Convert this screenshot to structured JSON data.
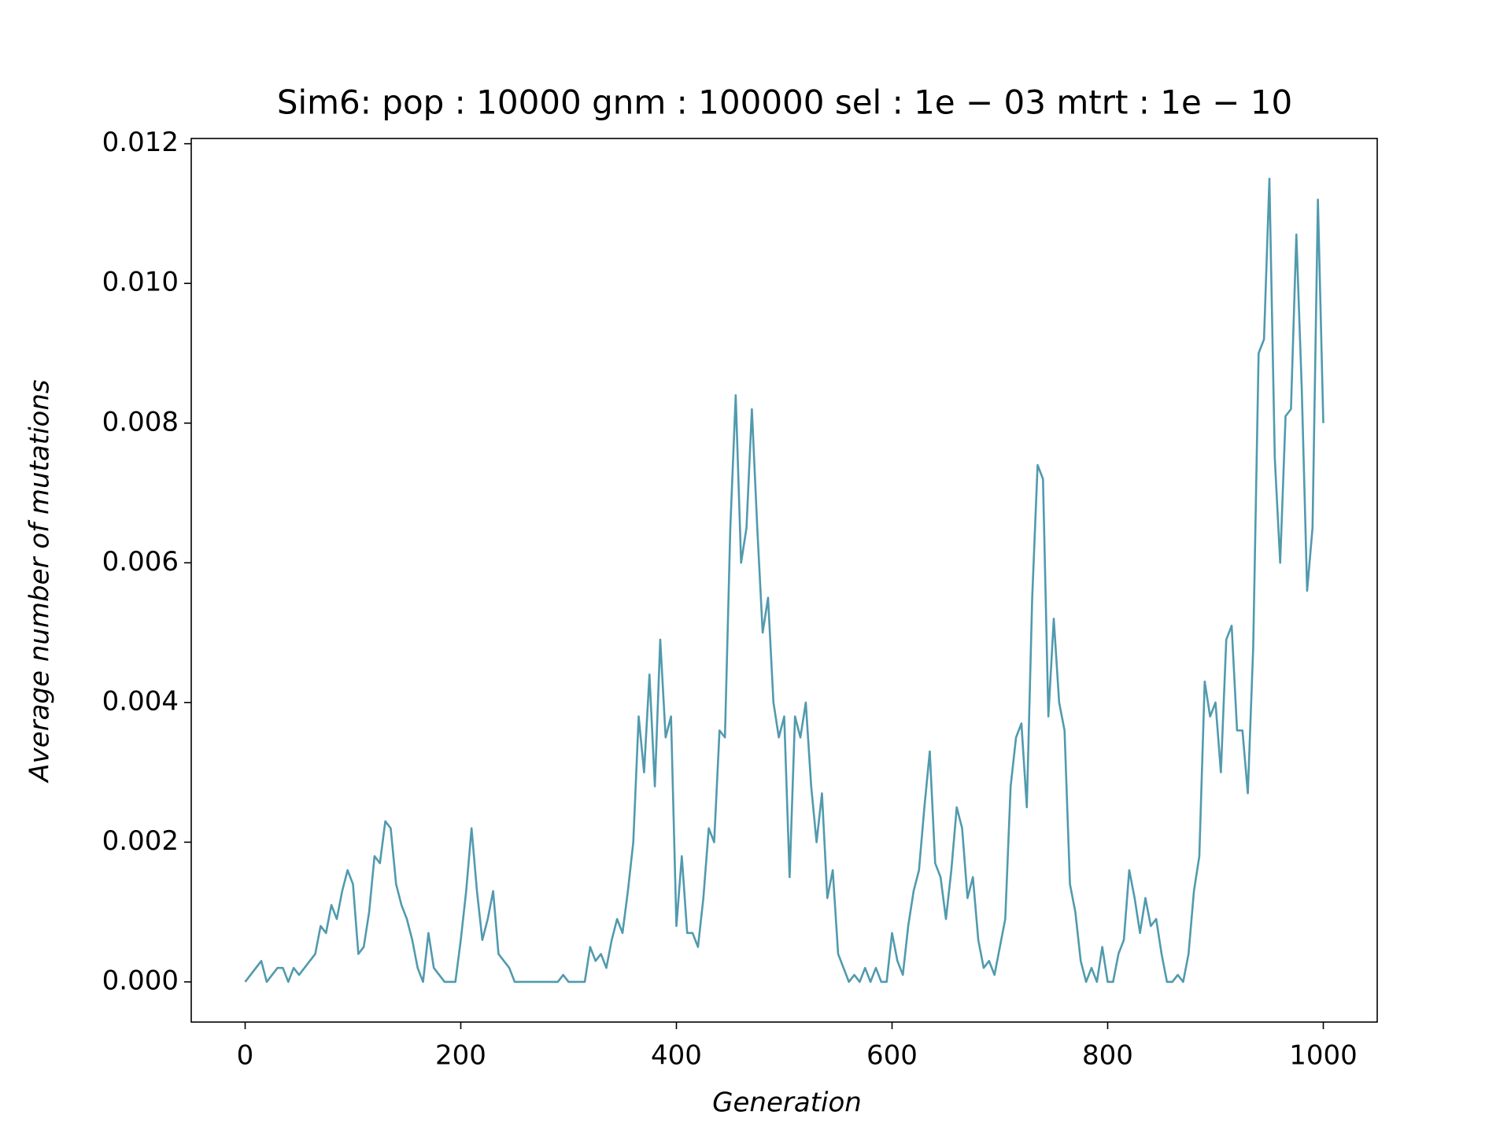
{
  "chart_data": {
    "type": "line",
    "title": "Sim6: pop : 10000 gnm : 100000 sel : 1e − 03 mtrt : 1e − 10",
    "xlabel": "Generation",
    "ylabel": "Average number of mutations",
    "color": "#519aae",
    "xlim": [
      -50,
      1050
    ],
    "ylim": [
      -0.000575,
      0.012075
    ],
    "xticks": [
      0,
      200,
      400,
      600,
      800,
      1000
    ],
    "yticks": [
      {
        "value": 0,
        "label": "0.000"
      },
      {
        "value": 0.002,
        "label": "0.002"
      },
      {
        "value": 0.004,
        "label": "0.004"
      },
      {
        "value": 0.006,
        "label": "0.006"
      },
      {
        "value": 0.008,
        "label": "0.008"
      },
      {
        "value": 0.01,
        "label": "0.010"
      },
      {
        "value": 0.012,
        "label": "0.012"
      }
    ],
    "x": [
      0,
      5,
      10,
      15,
      20,
      25,
      30,
      35,
      40,
      45,
      50,
      55,
      60,
      65,
      70,
      75,
      80,
      85,
      90,
      95,
      100,
      105,
      110,
      115,
      120,
      125,
      130,
      135,
      140,
      145,
      150,
      155,
      160,
      165,
      170,
      175,
      180,
      185,
      190,
      195,
      200,
      205,
      210,
      215,
      220,
      225,
      230,
      235,
      240,
      245,
      250,
      255,
      260,
      265,
      270,
      275,
      280,
      285,
      290,
      295,
      300,
      305,
      310,
      315,
      320,
      325,
      330,
      335,
      340,
      345,
      350,
      355,
      360,
      365,
      370,
      375,
      380,
      385,
      390,
      395,
      400,
      405,
      410,
      415,
      420,
      425,
      430,
      435,
      440,
      445,
      450,
      455,
      460,
      465,
      470,
      475,
      480,
      485,
      490,
      495,
      500,
      505,
      510,
      515,
      520,
      525,
      530,
      535,
      540,
      545,
      550,
      555,
      560,
      565,
      570,
      575,
      580,
      585,
      590,
      595,
      600,
      605,
      610,
      615,
      620,
      625,
      630,
      635,
      640,
      645,
      650,
      655,
      660,
      665,
      670,
      675,
      680,
      685,
      690,
      695,
      700,
      705,
      710,
      715,
      720,
      725,
      730,
      735,
      740,
      745,
      750,
      755,
      760,
      765,
      770,
      775,
      780,
      785,
      790,
      795,
      800,
      805,
      810,
      815,
      820,
      825,
      830,
      835,
      840,
      845,
      850,
      855,
      860,
      865,
      870,
      875,
      880,
      885,
      890,
      895,
      900,
      905,
      910,
      915,
      920,
      925,
      930,
      935,
      940,
      945,
      950,
      955,
      960,
      965,
      970,
      975,
      980,
      985,
      990,
      995,
      1000
    ],
    "values": [
      0,
      0.0001,
      0.0002,
      0.0003,
      0,
      0.0001,
      0.0002,
      0.0002,
      0,
      0.0002,
      0.0001,
      0.0002,
      0.0003,
      0.0004,
      0.0008,
      0.0007,
      0.0011,
      0.0009,
      0.0013,
      0.0016,
      0.0014,
      0.0004,
      0.0005,
      0.001,
      0.0018,
      0.0017,
      0.0023,
      0.0022,
      0.0014,
      0.0011,
      0.0009,
      0.0006,
      0.0002,
      0,
      0.0007,
      0.0002,
      0.0001,
      0,
      0,
      0,
      0.0006,
      0.0013,
      0.0022,
      0.0013,
      0.0006,
      0.0009,
      0.0013,
      0.0004,
      0.0003,
      0.0002,
      0,
      0,
      0,
      0,
      0,
      0,
      0,
      0,
      0,
      0.0001,
      0,
      0,
      0,
      0,
      0.0005,
      0.0003,
      0.0004,
      0.0002,
      0.0006,
      0.0009,
      0.0007,
      0.0013,
      0.002,
      0.0038,
      0.003,
      0.0044,
      0.0028,
      0.0049,
      0.0035,
      0.0038,
      0.0008,
      0.0018,
      0.0007,
      0.0007,
      0.0005,
      0.0012,
      0.0022,
      0.002,
      0.0036,
      0.0035,
      0.0065,
      0.0084,
      0.006,
      0.0065,
      0.0082,
      0.0065,
      0.005,
      0.0055,
      0.004,
      0.0035,
      0.0038,
      0.0015,
      0.0038,
      0.0035,
      0.004,
      0.0028,
      0.002,
      0.0027,
      0.0012,
      0.0016,
      0.0004,
      0.0002,
      0,
      0.0001,
      0,
      0.0002,
      0,
      0.0002,
      0,
      0,
      0.0007,
      0.0003,
      0.0001,
      0.0008,
      0.0013,
      0.0016,
      0.0025,
      0.0033,
      0.0017,
      0.0015,
      0.0009,
      0.0016,
      0.0025,
      0.0022,
      0.0012,
      0.0015,
      0.0006,
      0.0002,
      0.0003,
      0.0001,
      0.0005,
      0.0009,
      0.0028,
      0.0035,
      0.0037,
      0.0025,
      0.0055,
      0.0074,
      0.0072,
      0.0038,
      0.0052,
      0.004,
      0.0036,
      0.0014,
      0.001,
      0.0003,
      0,
      0.0002,
      0,
      0.0005,
      0,
      0,
      0.0004,
      0.0006,
      0.0016,
      0.0012,
      0.0007,
      0.0012,
      0.0008,
      0.0009,
      0.0004,
      0,
      0,
      0.0001,
      0,
      0.0004,
      0.0013,
      0.0018,
      0.0043,
      0.0038,
      0.004,
      0.003,
      0.0049,
      0.0051,
      0.0036,
      0.0036,
      0.0027,
      0.0048,
      0.009,
      0.0092,
      0.0115,
      0.0075,
      0.006,
      0.0081,
      0.0082,
      0.0107,
      0.0085,
      0.0056,
      0.0065,
      0.0112,
      0.008
    ]
  }
}
